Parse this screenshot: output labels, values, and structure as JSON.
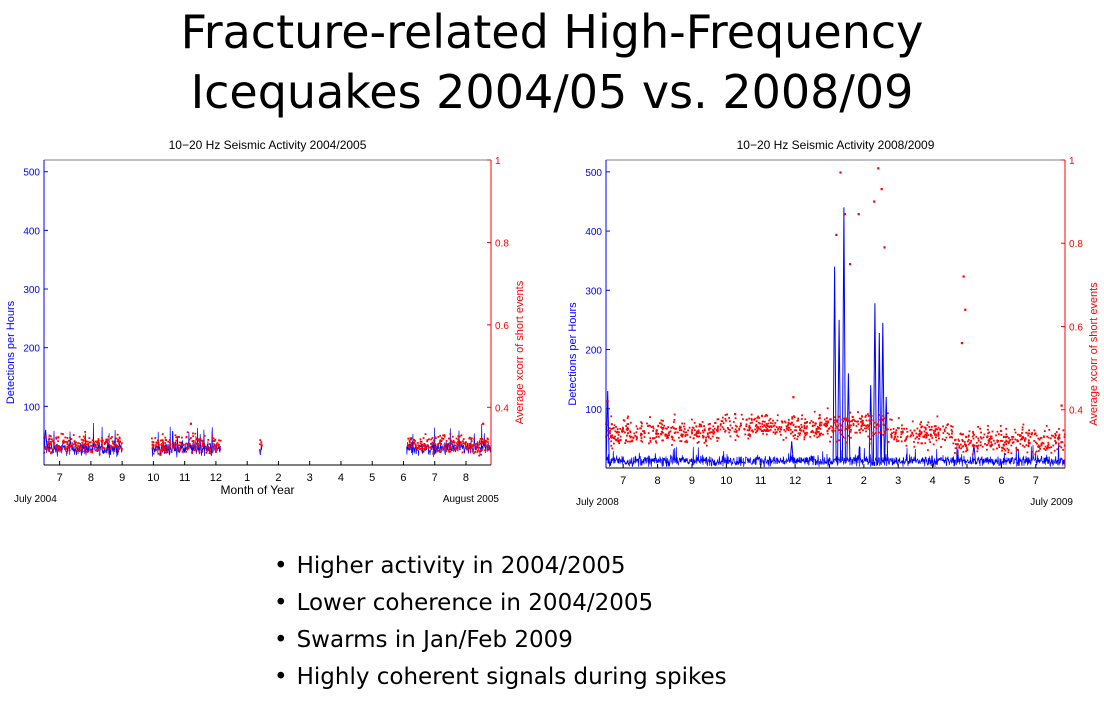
{
  "slide": {
    "title_line1": "Fracture-related High-Frequency",
    "title_line2": "Icequakes 2004/05 vs. 2008/09",
    "bullets": [
      "Higher activity in 2004/2005",
      "Lower coherence in 2004/2005",
      "Swarms in Jan/Feb 2009",
      "Highly coherent signals during spikes"
    ]
  },
  "colors": {
    "detections": "#0000ff",
    "xcorr": "#ff0000",
    "axis": "#000000"
  },
  "chart_data": [
    {
      "type": "line",
      "title": "10−20 Hz Seismic Activity 2004/2005",
      "xlabel": "Month of Year",
      "ylabel": "Detections per Hours",
      "y2label": "Average xcorr of short events",
      "x_start_label": "July 2004",
      "x_end_label": "August 2005",
      "xlim": [
        6.5,
        20.8
      ],
      "ylim": [
        0,
        520
      ],
      "y2lim": [
        0.26,
        1.0
      ],
      "yticks": [
        100,
        200,
        300,
        400,
        500
      ],
      "y2ticks": [
        0.4,
        0.6,
        0.8,
        1
      ],
      "xticks": [
        7,
        8,
        9,
        10,
        11,
        12,
        13,
        14,
        15,
        16,
        17,
        18,
        19,
        20
      ],
      "xtick_labels": [
        "7",
        "8",
        "9",
        "10",
        "11",
        "12",
        "1",
        "2",
        "3",
        "4",
        "5",
        "6",
        "7",
        "8"
      ],
      "data_segments": [
        [
          6.5,
          9.0
        ],
        [
          9.95,
          12.15
        ],
        [
          13.4,
          13.47
        ],
        [
          18.1,
          20.8
        ]
      ],
      "series": [
        {
          "name": "Detections per Hours",
          "axis": "left",
          "style": "line",
          "baseline": 28,
          "noise": 18,
          "spikes": [
            {
              "x": 6.55,
              "y": 60
            }
          ]
        },
        {
          "name": "Average xcorr of short events",
          "axis": "right",
          "style": "points",
          "baseline": 0.31,
          "noise": 0.035,
          "outliers": [
            {
              "x": 6.55,
              "y": 0.33
            },
            {
              "x": 11.2,
              "y": 0.36
            },
            {
              "x": 20.55,
              "y": 0.36
            }
          ]
        }
      ]
    },
    {
      "type": "line",
      "title": "10−20 Hz Seismic Activity 2008/2009",
      "xlabel": "",
      "ylabel": "Detections per Hours",
      "y2label": "Average xcorr of short events",
      "x_start_label": "July 2008",
      "x_end_label": "July 2009",
      "xlim": [
        6.5,
        19.85
      ],
      "ylim": [
        0,
        520
      ],
      "y2lim": [
        0.26,
        1.0
      ],
      "yticks": [
        100,
        200,
        300,
        400,
        500
      ],
      "y2ticks": [
        0.4,
        0.6,
        0.8,
        1
      ],
      "xticks": [
        7,
        8,
        9,
        10,
        11,
        12,
        13,
        14,
        15,
        16,
        17,
        18,
        19
      ],
      "xtick_labels": [
        "7",
        "8",
        "9",
        "10",
        "11",
        "12",
        "1",
        "2",
        "3",
        "4",
        "5",
        "6",
        "7"
      ],
      "data_segments": [
        [
          6.5,
          19.85
        ]
      ],
      "series": [
        {
          "name": "Detections per Hours",
          "axis": "left",
          "style": "line",
          "baseline": 12,
          "noise": 14,
          "spikes": [
            {
              "x": 13.15,
              "y": 340
            },
            {
              "x": 13.28,
              "y": 250
            },
            {
              "x": 13.42,
              "y": 440
            },
            {
              "x": 13.55,
              "y": 160
            },
            {
              "x": 14.2,
              "y": 140
            },
            {
              "x": 14.32,
              "y": 278
            },
            {
              "x": 14.45,
              "y": 228
            },
            {
              "x": 14.55,
              "y": 245
            },
            {
              "x": 14.65,
              "y": 120
            },
            {
              "x": 11.9,
              "y": 45
            },
            {
              "x": 17.2,
              "y": 40
            },
            {
              "x": 6.55,
              "y": 130
            }
          ]
        },
        {
          "name": "Average xcorr of short events",
          "axis": "right",
          "style": "points",
          "baseline": 0.345,
          "noise": 0.045,
          "outliers": [
            {
              "x": 13.2,
              "y": 0.82
            },
            {
              "x": 13.32,
              "y": 0.97
            },
            {
              "x": 13.45,
              "y": 0.87
            },
            {
              "x": 13.6,
              "y": 0.75
            },
            {
              "x": 13.85,
              "y": 0.87
            },
            {
              "x": 14.3,
              "y": 0.9
            },
            {
              "x": 14.42,
              "y": 0.98
            },
            {
              "x": 14.52,
              "y": 0.93
            },
            {
              "x": 14.6,
              "y": 0.79
            },
            {
              "x": 16.9,
              "y": 0.72
            },
            {
              "x": 16.95,
              "y": 0.64
            },
            {
              "x": 16.85,
              "y": 0.56
            },
            {
              "x": 11.95,
              "y": 0.43
            },
            {
              "x": 19.75,
              "y": 0.41
            },
            {
              "x": 6.55,
              "y": 0.42
            }
          ]
        }
      ]
    }
  ]
}
